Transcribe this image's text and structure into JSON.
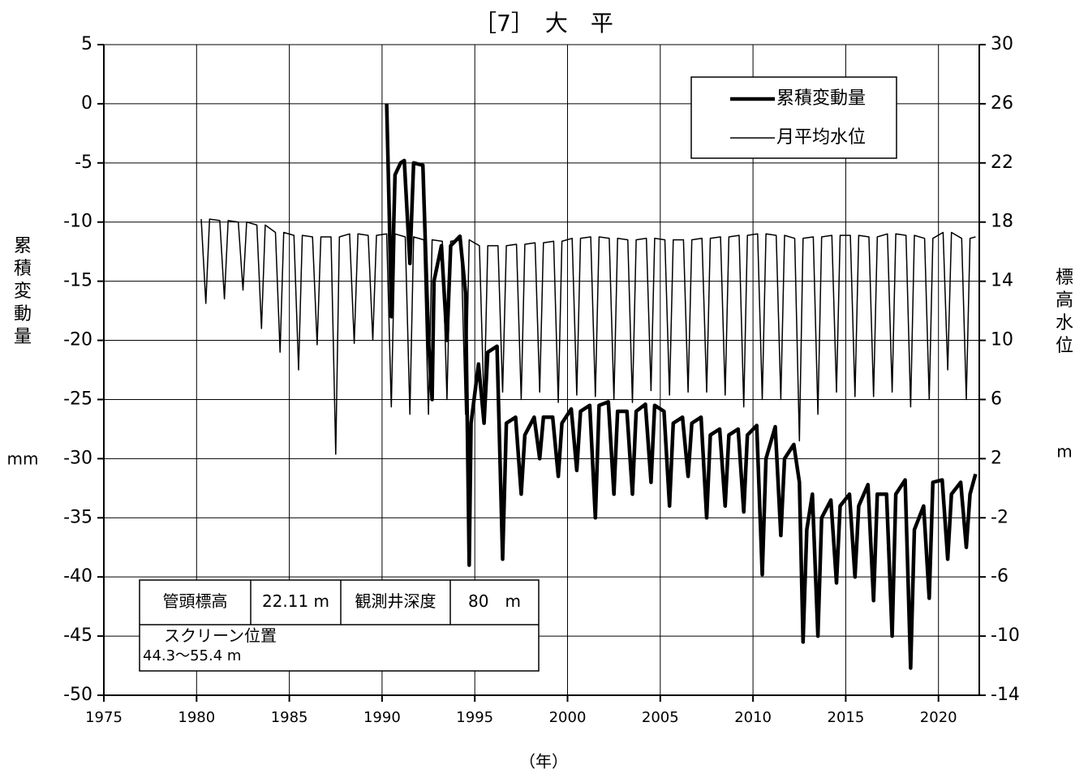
{
  "chart_data": {
    "type": "line",
    "title": "［7］　大　平",
    "y_label": "累積変動量",
    "y_unit": "mm",
    "y2_label": "標高水位",
    "y2_unit": "m",
    "x_label": "（年）",
    "xlim": [
      1975,
      2022.2
    ],
    "xticks": [
      1975,
      1980,
      1985,
      1990,
      1995,
      2000,
      2005,
      2010,
      2015,
      2020
    ],
    "ylim": [
      -50,
      5
    ],
    "yticks": [
      5,
      0,
      -5,
      -10,
      -15,
      -20,
      -25,
      -30,
      -35,
      -40,
      -45,
      -50
    ],
    "y2lim": [
      -14,
      30
    ],
    "y2ticks": [
      30,
      26,
      22,
      18,
      14,
      10,
      6,
      2,
      -2,
      -6,
      -10,
      -14
    ],
    "grid": true,
    "legend": "upper right",
    "series": [
      {
        "name": "累積変動量",
        "color": "#000000",
        "width": 4.5,
        "x": [
          1990.25,
          1990.4,
          1990.5,
          1990.7,
          1991,
          1991.2,
          1991.5,
          1991.7,
          1992.2,
          1992.5,
          1992.7,
          1992.8,
          1993.2,
          1993.5,
          1993.7,
          1994.2,
          1994.5,
          1994.7,
          1994.8,
          1995.2,
          1995.5,
          1995.7,
          1996.2,
          1996.5,
          1996.7,
          1997.2,
          1997.5,
          1997.7,
          1998.2,
          1998.5,
          1998.7,
          1999.2,
          1999.5,
          1999.7,
          2000.2,
          2000.5,
          2000.7,
          2001.2,
          2001.5,
          2001.7,
          2002.2,
          2002.5,
          2002.7,
          2003.2,
          2003.5,
          2003.7,
          2004.2,
          2004.5,
          2004.7,
          2005.2,
          2005.5,
          2005.7,
          2006.2,
          2006.5,
          2006.7,
          2007.2,
          2007.5,
          2007.7,
          2008.2,
          2008.5,
          2008.7,
          2009.2,
          2009.5,
          2009.7,
          2010.2,
          2010.5,
          2010.7,
          2011.2,
          2011.5,
          2011.7,
          2012.2,
          2012.5,
          2012.7,
          2012.9,
          2013.2,
          2013.5,
          2013.7,
          2014.2,
          2014.5,
          2014.7,
          2015.2,
          2015.5,
          2015.7,
          2016.2,
          2016.5,
          2016.7,
          2017.2,
          2017.5,
          2017.7,
          2018.2,
          2018.5,
          2018.7,
          2019.2,
          2019.5,
          2019.7,
          2020.2,
          2020.5,
          2020.7,
          2021.2,
          2021.5,
          2021.7,
          2022
        ],
        "values": [
          0,
          -10,
          -18,
          -6,
          -5,
          -4.8,
          -13.5,
          -5,
          -5.2,
          -20,
          -25,
          -15,
          -12,
          -20,
          -12,
          -11.2,
          -16,
          -39,
          -27,
          -22,
          -27,
          -21,
          -20.5,
          -38.5,
          -27,
          -26.5,
          -33,
          -28,
          -26.5,
          -30,
          -26.5,
          -26.5,
          -31.5,
          -27,
          -25.8,
          -31,
          -26,
          -25.5,
          -35,
          -25.5,
          -25.2,
          -33,
          -26,
          -26,
          -33,
          -26,
          -25.4,
          -32,
          -25.5,
          -26,
          -34,
          -27,
          -26.5,
          -31.5,
          -27,
          -26.5,
          -35,
          -28,
          -27.5,
          -34,
          -28,
          -27.5,
          -34.5,
          -28,
          -27.2,
          -39.8,
          -30,
          -27.3,
          -36.5,
          -30,
          -28.8,
          -32,
          -45.5,
          -36,
          -33,
          -45,
          -35,
          -33.5,
          -40.5,
          -34,
          -33,
          -40,
          -34,
          -32.2,
          -42,
          -33,
          -33,
          -45,
          -33,
          -31.8,
          -47.7,
          -36,
          -34,
          -41.8,
          -32,
          -31.8,
          -38.5,
          -33,
          -32,
          -37.5,
          -33,
          -31.3
        ]
      },
      {
        "name": "月平均水位",
        "color": "#000000",
        "width": 1.5,
        "axis": "y2",
        "x": [
          1980.25,
          1980.5,
          1980.7,
          1981.25,
          1981.5,
          1981.7,
          1982.25,
          1982.5,
          1982.7,
          1983.25,
          1983.5,
          1983.7,
          1984.25,
          1984.5,
          1984.7,
          1985.25,
          1985.5,
          1985.7,
          1986.25,
          1986.5,
          1986.7,
          1987.25,
          1987.5,
          1987.7,
          1988.25,
          1988.5,
          1988.7,
          1989.25,
          1989.5,
          1989.7,
          1990.25,
          1990.5,
          1990.7,
          1991.25,
          1991.5,
          1991.7,
          1992.25,
          1992.5,
          1992.7,
          1993.25,
          1993.5,
          1993.7,
          1994.25,
          1994.5,
          1994.7,
          1995.25,
          1995.5,
          1995.7,
          1996.25,
          1996.5,
          1996.7,
          1997.25,
          1997.5,
          1997.7,
          1998.25,
          1998.5,
          1998.7,
          1999.25,
          1999.5,
          1999.7,
          2000.25,
          2000.5,
          2000.7,
          2001.25,
          2001.5,
          2001.7,
          2002.25,
          2002.5,
          2002.7,
          2003.25,
          2003.5,
          2003.7,
          2004.25,
          2004.5,
          2004.7,
          2005.25,
          2005.5,
          2005.7,
          2006.25,
          2006.5,
          2006.7,
          2007.25,
          2007.5,
          2007.7,
          2008.25,
          2008.5,
          2008.7,
          2009.25,
          2009.5,
          2009.7,
          2010.25,
          2010.5,
          2010.7,
          2011.25,
          2011.5,
          2011.7,
          2012.25,
          2012.5,
          2012.7,
          2013.25,
          2013.5,
          2013.7,
          2014.25,
          2014.5,
          2014.7,
          2015.25,
          2015.5,
          2015.7,
          2016.25,
          2016.5,
          2016.7,
          2017.25,
          2017.5,
          2017.7,
          2018.25,
          2018.5,
          2018.7,
          2019.25,
          2019.5,
          2019.7,
          2020.25,
          2020.5,
          2020.7,
          2021.25,
          2021.5,
          2021.7,
          2022
        ],
        "values": [
          18.2,
          12.5,
          18.2,
          18.1,
          12.8,
          18.1,
          18,
          13.4,
          18,
          17.8,
          10.8,
          17.8,
          17.3,
          9.2,
          17.3,
          17.1,
          8,
          17.1,
          17,
          9.7,
          17,
          17,
          2.3,
          17,
          17.2,
          9.8,
          17.2,
          17.1,
          10,
          17.1,
          17.2,
          5.5,
          17.2,
          17,
          5,
          17,
          16.8,
          5,
          16.8,
          16.7,
          6,
          16.7,
          16.8,
          5,
          16.8,
          16.4,
          5.5,
          16.4,
          16.4,
          6.5,
          16.4,
          16.5,
          6,
          16.5,
          16.6,
          6.5,
          16.6,
          16.7,
          5.8,
          16.7,
          16.9,
          6.3,
          16.9,
          17,
          6.2,
          17,
          16.9,
          6,
          16.9,
          16.8,
          5.8,
          16.8,
          16.9,
          6.6,
          16.9,
          16.8,
          6.3,
          16.8,
          16.8,
          6.5,
          16.8,
          16.9,
          6.5,
          16.9,
          17,
          6.3,
          17,
          17.1,
          5.5,
          17.1,
          17.2,
          6,
          17.2,
          17.1,
          6,
          17.1,
          16.9,
          3.2,
          16.9,
          17,
          5,
          17,
          17.1,
          6.5,
          17.1,
          17.1,
          6.2,
          17.1,
          17,
          6.2,
          17,
          17.2,
          6.5,
          17.2,
          17.1,
          5.5,
          17.1,
          16.9,
          6,
          16.9,
          17.3,
          8,
          17.3,
          16.9,
          6,
          16.9,
          17
        ]
      }
    ],
    "info_table": {
      "row1": [
        "管頭標高",
        "22.11 m",
        "観測井深度",
        "80　m"
      ],
      "row2": [
        "スクリーン位置",
        "44.3～55.4 m"
      ]
    }
  }
}
